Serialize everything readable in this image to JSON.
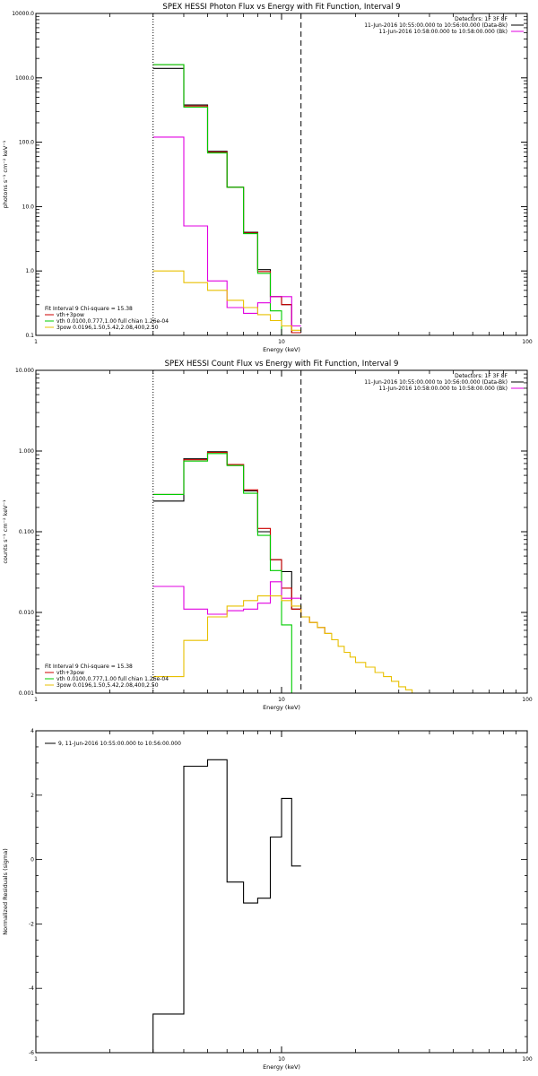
{
  "colors": {
    "data": "#000000",
    "bk": "#e000e0",
    "vth": "#00cc00",
    "pow": "#e8c000",
    "fit": "#cc0000"
  },
  "chart_data": [
    {
      "id": "photon",
      "type": "line",
      "title": "SPEX HESSI Photon Flux vs Energy with Fit Function, Interval 9",
      "xlabel": "Energy (keV)",
      "ylabel": "photons s⁻¹ cm⁻² keV⁻¹",
      "xscale": "log",
      "yscale": "log",
      "xlim": [
        1,
        100
      ],
      "ylim": [
        0.1,
        10000
      ],
      "xticks": [
        {
          "v": 1,
          "label": "1"
        },
        {
          "v": 10,
          "label": "10"
        },
        {
          "v": 100,
          "label": "100"
        }
      ],
      "yticks": [
        {
          "v": 0.1,
          "label": "0.1"
        },
        {
          "v": 1,
          "label": "1.0"
        },
        {
          "v": 10,
          "label": "10.0"
        },
        {
          "v": 100,
          "label": "100.0"
        },
        {
          "v": 1000,
          "label": "1000.0"
        },
        {
          "v": 10000,
          "label": "10000.0"
        }
      ],
      "vlines": [
        {
          "x": 3,
          "style": "dotted"
        },
        {
          "x": 12,
          "style": "dashed"
        }
      ],
      "info": [
        "Detectors: 1F 3F 8F",
        "11-Jun-2016 10:55:00.000 to 10:56:00.000 (Data-Bk)",
        "11-Jun-2016 10:58:00.000 to 10:58:00.000 (Bk)"
      ],
      "info_colors": [
        "data",
        "data",
        "bk"
      ],
      "legend": [
        "Fit Interval 9   Chi-square = 15.38",
        "vth+3pow",
        "vth 0.0100,0.777,1.00  full chian 1.26e-04",
        "3pow 0.0196,1.50,5.42,2.08,400,2.50"
      ],
      "legend_colors": [
        "data",
        "fit",
        "vth",
        "pow"
      ],
      "edges": [
        3,
        4,
        5,
        6,
        7,
        8,
        9,
        10,
        11,
        12
      ],
      "series": [
        {
          "color": "data",
          "values": [
            1400,
            380,
            72,
            20,
            4.0,
            1.05,
            0.4,
            0.3,
            0.11
          ]
        },
        {
          "color": "fit",
          "values": [
            1600,
            365,
            70,
            20,
            3.9,
            0.98,
            0.4,
            0.3,
            0.11
          ]
        },
        {
          "color": "vth",
          "values": [
            1600,
            350,
            68,
            20,
            3.8,
            0.92,
            0.24,
            0.1,
            0.1
          ]
        },
        {
          "color": "bk",
          "values": [
            120,
            5.0,
            0.7,
            0.27,
            0.22,
            0.32,
            0.4,
            0.4,
            0.14
          ]
        },
        {
          "color": "pow",
          "values": [
            1.0,
            0.66,
            0.5,
            0.35,
            0.27,
            0.21,
            0.17,
            0.14,
            0.12
          ]
        }
      ]
    },
    {
      "id": "count",
      "type": "line",
      "title": "SPEX HESSI Count Flux vs Energy with Fit Function, Interval 9",
      "xlabel": "Energy (keV)",
      "ylabel": "counts s⁻¹ cm⁻² keV⁻¹",
      "xscale": "log",
      "yscale": "log",
      "xlim": [
        1,
        100
      ],
      "ylim": [
        0.001,
        10
      ],
      "xticks": [
        {
          "v": 1,
          "label": "1"
        },
        {
          "v": 10,
          "label": "10"
        },
        {
          "v": 100,
          "label": "100"
        }
      ],
      "yticks": [
        {
          "v": 0.001,
          "label": "0.001"
        },
        {
          "v": 0.01,
          "label": "0.010"
        },
        {
          "v": 0.1,
          "label": "0.100"
        },
        {
          "v": 1,
          "label": "1.000"
        },
        {
          "v": 10,
          "label": "10.000"
        }
      ],
      "vlines": [
        {
          "x": 3,
          "style": "dotted"
        },
        {
          "x": 12,
          "style": "dashed"
        }
      ],
      "info": [
        "Detectors: 1F 3F 8F",
        "11-Jun-2016 10:55:00.000 to 10:56:00.000 (Data-Bk)",
        "11-Jun-2016 10:58:00.000 to 10:58:00.000 (Bk)"
      ],
      "info_colors": [
        "data",
        "data",
        "bk"
      ],
      "legend": [
        "Fit Interval 9   Chi-square = 15.38",
        "vth+3pow",
        "vth 0.0100,0.777,1.00  full chian 1.26e-04",
        "3pow 0.0196,1.50,5.42,2.08,400,2.50"
      ],
      "legend_colors": [
        "data",
        "fit",
        "vth",
        "pow"
      ],
      "edges": [
        3,
        4,
        5,
        6,
        7,
        8,
        9,
        10,
        11,
        12,
        13,
        14,
        15,
        16,
        17,
        18,
        19,
        20,
        22,
        24,
        26,
        28,
        30,
        32,
        34,
        36,
        38,
        40,
        45
      ],
      "series": [
        {
          "color": "data",
          "values": [
            0.24,
            0.8,
            0.98,
            0.68,
            0.32,
            0.1,
            0.045,
            0.032,
            0.011
          ]
        },
        {
          "color": "fit",
          "values": [
            0.29,
            0.78,
            0.96,
            0.68,
            0.33,
            0.11,
            0.045,
            0.02,
            0.011,
            0.0088,
            0.0075,
            0.0065,
            0.0055
          ]
        },
        {
          "color": "vth",
          "values": [
            0.29,
            0.75,
            0.93,
            0.66,
            0.3,
            0.09,
            0.033,
            0.007,
            0.001
          ]
        },
        {
          "color": "bk",
          "values": [
            0.021,
            0.011,
            0.0095,
            0.0105,
            0.011,
            0.013,
            0.024,
            0.015,
            0.015
          ]
        },
        {
          "color": "pow",
          "values": [
            0.0016,
            0.0045,
            0.0088,
            0.012,
            0.014,
            0.016,
            0.016,
            0.014,
            0.012,
            0.0088,
            0.0075,
            0.0065,
            0.0055,
            0.0046,
            0.0038,
            0.0032,
            0.0028,
            0.0024,
            0.0021,
            0.0018,
            0.0016,
            0.0014,
            0.0012,
            0.0011,
            0.001,
            0.001,
            0.001,
            0.001
          ]
        }
      ]
    },
    {
      "id": "resid",
      "type": "line",
      "title": "",
      "xlabel": "Energy (keV)",
      "ylabel": "Normalized Residuals (sigma)",
      "xscale": "log",
      "yscale": "linear",
      "xlim": [
        1,
        100
      ],
      "ylim": [
        -6,
        4
      ],
      "xticks": [
        {
          "v": 1,
          "label": "1"
        },
        {
          "v": 10,
          "label": "10"
        },
        {
          "v": 100,
          "label": "100"
        }
      ],
      "yticks": [
        {
          "v": -6,
          "label": "-6"
        },
        {
          "v": -4,
          "label": "-4"
        },
        {
          "v": -2,
          "label": "-2"
        },
        {
          "v": 0,
          "label": "0"
        },
        {
          "v": 2,
          "label": "2"
        },
        {
          "v": 4,
          "label": "4"
        }
      ],
      "vlines": [],
      "info": [],
      "info_colors": [],
      "legend": [
        "9, 11-Jun-2016 10:55:00.000 to 10:56:00.000"
      ],
      "legend_colors": [
        "data"
      ],
      "edges": [
        3,
        4,
        5,
        6,
        7,
        8,
        9,
        10,
        11,
        12
      ],
      "series": [
        {
          "color": "data",
          "values": [
            -4.8,
            2.9,
            3.1,
            -0.7,
            -1.35,
            -1.2,
            0.7,
            1.9,
            -0.2
          ]
        }
      ]
    }
  ]
}
